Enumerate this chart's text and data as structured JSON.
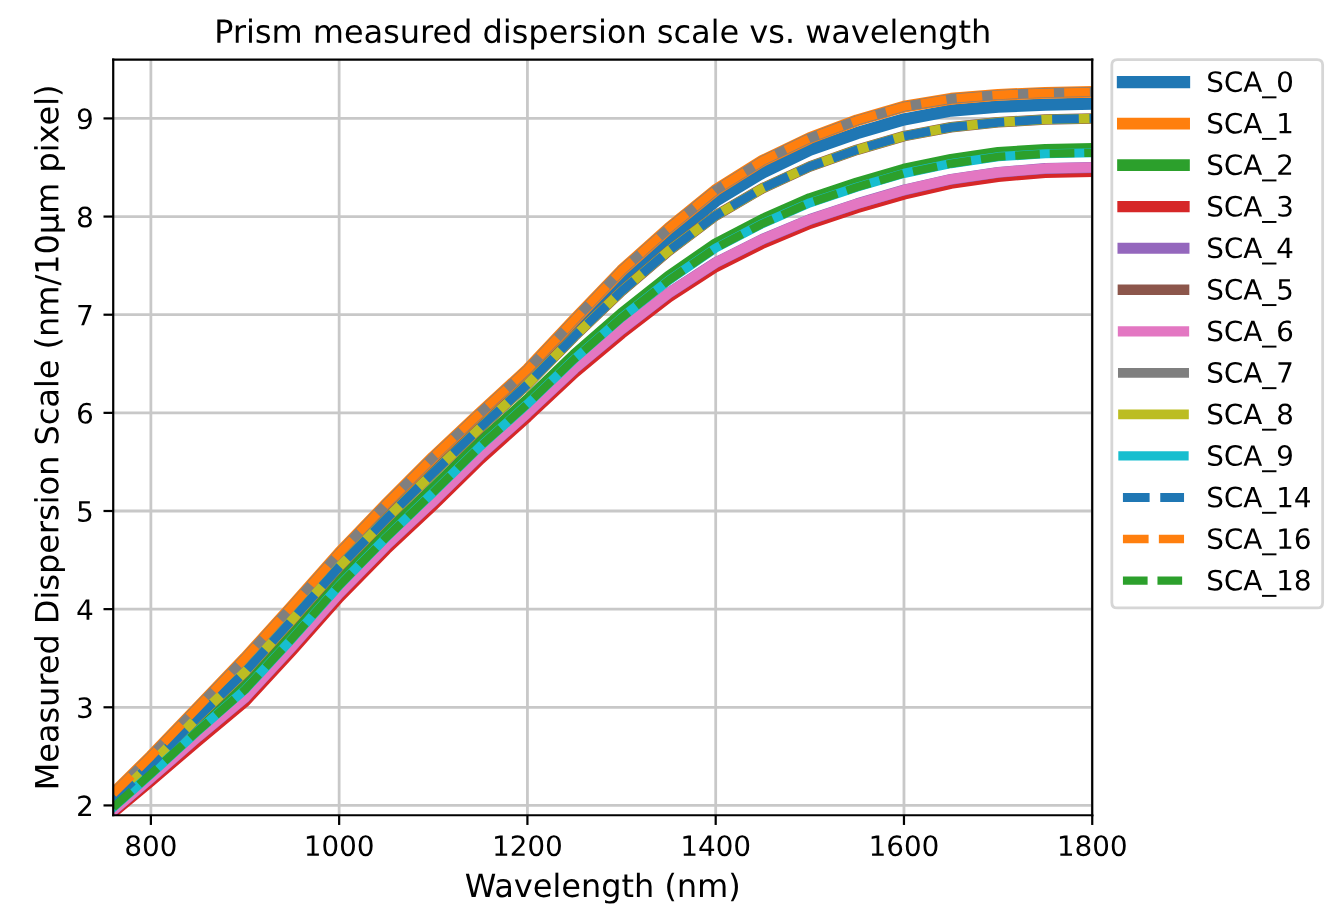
{
  "chart_data": {
    "type": "line",
    "title": "Prism measured dispersion scale vs. wavelength",
    "xlabel": "Wavelength (nm)",
    "ylabel": "Measured Dispersion Scale (nm/10μm pixel)",
    "x": [
      760,
      800,
      850,
      900,
      950,
      1000,
      1050,
      1100,
      1150,
      1200,
      1250,
      1300,
      1350,
      1400,
      1450,
      1500,
      1550,
      1600,
      1650,
      1700,
      1750,
      1800
    ],
    "xlim": [
      760,
      1800
    ],
    "xticks": [
      800,
      1000,
      1200,
      1400,
      1600,
      1800
    ],
    "ylim": [
      1.9,
      9.6
    ],
    "yticks": [
      2,
      3,
      4,
      5,
      6,
      7,
      8,
      9
    ],
    "grid": true,
    "legend": "right",
    "marker": "none",
    "series": [
      {
        "name": "SCA_0",
        "color": "#1f77b4",
        "line_style": "solid",
        "values": [
          2.09,
          2.47,
          2.96,
          3.44,
          3.97,
          4.51,
          5.01,
          5.48,
          5.94,
          6.37,
          6.88,
          7.36,
          7.78,
          8.16,
          8.45,
          8.68,
          8.85,
          8.99,
          9.08,
          9.12,
          9.14,
          9.15
        ]
      },
      {
        "name": "SCA_1",
        "color": "#ff7f0e",
        "line_style": "solid",
        "values": [
          2.12,
          2.5,
          3.0,
          3.5,
          4.03,
          4.57,
          5.07,
          5.55,
          6.0,
          6.44,
          6.95,
          7.45,
          7.88,
          8.27,
          8.57,
          8.8,
          8.98,
          9.12,
          9.2,
          9.24,
          9.26,
          9.27
        ]
      },
      {
        "name": "SCA_2",
        "color": "#2ca02c",
        "line_style": "solid",
        "values": [
          2.0,
          2.35,
          2.8,
          3.22,
          3.74,
          4.28,
          4.77,
          5.23,
          5.7,
          6.13,
          6.59,
          7.01,
          7.39,
          7.72,
          7.97,
          8.18,
          8.34,
          8.48,
          8.58,
          8.65,
          8.68,
          8.69
        ]
      },
      {
        "name": "SCA_3",
        "color": "#d62728",
        "line_style": "solid",
        "values": [
          1.93,
          2.25,
          2.66,
          3.06,
          3.58,
          4.12,
          4.61,
          5.06,
          5.53,
          5.96,
          6.41,
          6.81,
          7.18,
          7.49,
          7.73,
          7.93,
          8.09,
          8.23,
          8.34,
          8.41,
          8.45,
          8.46
        ]
      },
      {
        "name": "SCA_4",
        "color": "#9467bd",
        "line_style": "solid",
        "values": [
          1.95,
          2.28,
          2.7,
          3.1,
          3.62,
          4.16,
          4.65,
          5.1,
          5.57,
          6.0,
          6.45,
          6.85,
          7.22,
          7.53,
          7.77,
          7.97,
          8.13,
          8.27,
          8.38,
          8.45,
          8.49,
          8.5
        ]
      },
      {
        "name": "SCA_5",
        "color": "#8c564b",
        "line_style": "solid",
        "values": [
          2.06,
          2.42,
          2.9,
          3.36,
          3.89,
          4.43,
          4.92,
          5.39,
          5.85,
          6.29,
          6.78,
          7.24,
          7.65,
          8.01,
          8.29,
          8.51,
          8.68,
          8.82,
          8.91,
          8.96,
          8.99,
          9.0
        ]
      },
      {
        "name": "SCA_6",
        "color": "#e377c2",
        "line_style": "solid",
        "values": [
          1.95,
          2.28,
          2.7,
          3.1,
          3.62,
          4.16,
          4.65,
          5.1,
          5.57,
          6.0,
          6.45,
          6.85,
          7.22,
          7.53,
          7.77,
          7.97,
          8.13,
          8.27,
          8.38,
          8.45,
          8.49,
          8.5
        ]
      },
      {
        "name": "SCA_7",
        "color": "#7f7f7f",
        "line_style": "solid",
        "values": [
          2.12,
          2.5,
          3.0,
          3.5,
          4.03,
          4.57,
          5.07,
          5.55,
          6.0,
          6.44,
          6.95,
          7.45,
          7.88,
          8.27,
          8.57,
          8.8,
          8.98,
          9.12,
          9.2,
          9.24,
          9.26,
          9.27
        ]
      },
      {
        "name": "SCA_8",
        "color": "#bcbd22",
        "line_style": "solid",
        "values": [
          2.06,
          2.42,
          2.9,
          3.36,
          3.89,
          4.43,
          4.92,
          5.39,
          5.85,
          6.29,
          6.78,
          7.24,
          7.65,
          8.01,
          8.29,
          8.51,
          8.68,
          8.82,
          8.91,
          8.96,
          8.99,
          9.0
        ]
      },
      {
        "name": "SCA_9",
        "color": "#17becf",
        "line_style": "solid",
        "values": [
          1.98,
          2.32,
          2.76,
          3.18,
          3.7,
          4.24,
          4.73,
          5.19,
          5.66,
          6.09,
          6.55,
          6.97,
          7.35,
          7.68,
          7.93,
          8.14,
          8.3,
          8.44,
          8.54,
          8.61,
          8.64,
          8.65
        ]
      },
      {
        "name": "SCA_14",
        "color": "#1f77b4",
        "line_style": "dashed",
        "values": [
          2.06,
          2.42,
          2.9,
          3.36,
          3.89,
          4.43,
          4.92,
          5.39,
          5.85,
          6.29,
          6.78,
          7.24,
          7.65,
          8.01,
          8.29,
          8.51,
          8.68,
          8.82,
          8.91,
          8.96,
          8.99,
          9.0
        ]
      },
      {
        "name": "SCA_16",
        "color": "#ff7f0e",
        "line_style": "dashed",
        "values": [
          2.12,
          2.5,
          3.0,
          3.5,
          4.03,
          4.57,
          5.07,
          5.55,
          6.0,
          6.44,
          6.95,
          7.45,
          7.88,
          8.27,
          8.57,
          8.8,
          8.98,
          9.12,
          9.2,
          9.24,
          9.26,
          9.27
        ]
      },
      {
        "name": "SCA_18",
        "color": "#2ca02c",
        "line_style": "dashed",
        "values": [
          1.98,
          2.32,
          2.76,
          3.18,
          3.7,
          4.24,
          4.73,
          5.19,
          5.66,
          6.09,
          6.55,
          6.97,
          7.35,
          7.68,
          7.93,
          8.14,
          8.3,
          8.44,
          8.54,
          8.61,
          8.64,
          8.65
        ]
      }
    ]
  }
}
